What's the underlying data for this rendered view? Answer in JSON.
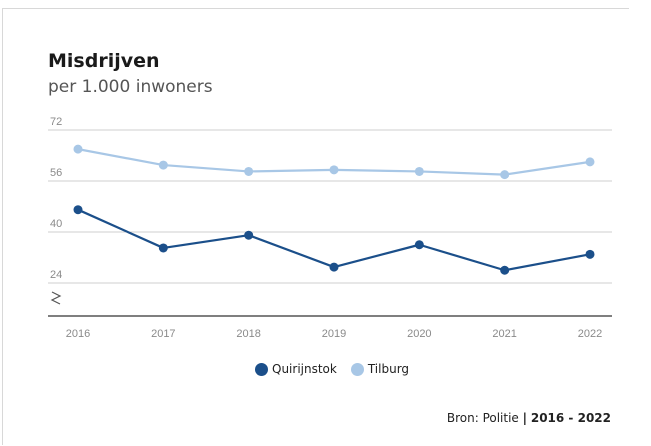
{
  "chart_data": {
    "type": "line",
    "title": "Misdrijven",
    "subtitle": "per 1.000 inwoners",
    "x": [
      "2016",
      "2017",
      "2018",
      "2019",
      "2020",
      "2021",
      "2022"
    ],
    "yticks": [
      "72",
      "56",
      "40",
      "24"
    ],
    "ylim": [
      16,
      72
    ],
    "axis_break": true,
    "grid": true,
    "legend_position": "bottom-center",
    "series": [
      {
        "name": "Quirijnstok",
        "color": "#1b4f8a",
        "values": [
          47,
          35,
          39,
          29,
          36,
          28,
          33
        ]
      },
      {
        "name": "Tilburg",
        "color": "#a8c7e6",
        "values": [
          66,
          61,
          59,
          59.5,
          59,
          58,
          62
        ]
      }
    ]
  },
  "source": {
    "label": "Bron: Politie",
    "separator": "|",
    "range": "2016 - 2022"
  }
}
